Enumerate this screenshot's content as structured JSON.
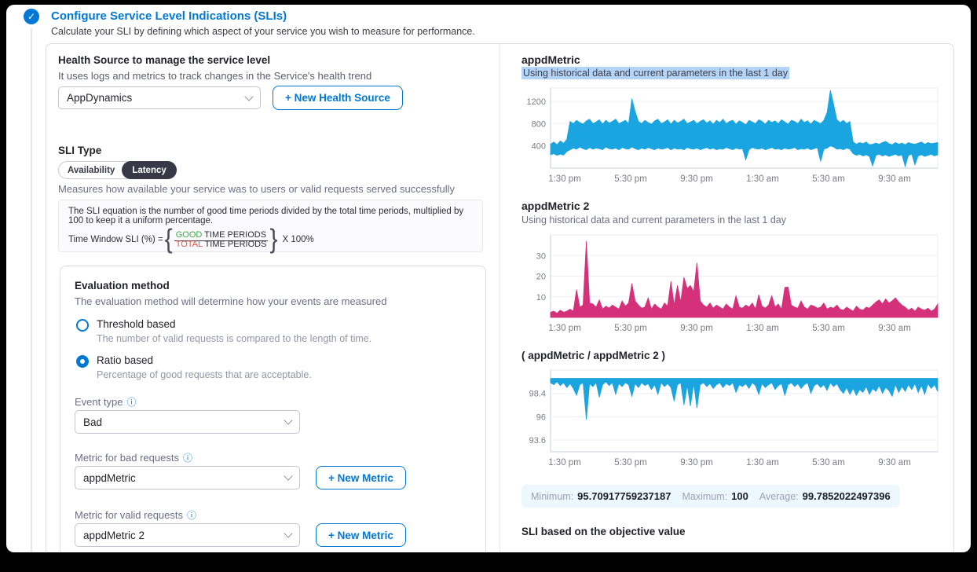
{
  "header": {
    "title": "Configure Service Level Indications (SLIs)",
    "subtitle": "Calculate your SLI by defining which aspect of your service you wish to measure for performance."
  },
  "health_source": {
    "label": "Health Source to manage the service level",
    "help": "It uses logs and metrics to track changes in the Service's health trend",
    "value": "AppDynamics",
    "new_button": "+ New Health Source"
  },
  "sli_type": {
    "label": "SLI Type",
    "options": [
      "Availability",
      "Latency"
    ],
    "selected": "Latency",
    "description": "Measures how available your service was to users or valid requests served successfully"
  },
  "equation": {
    "text": "The SLI equation is the number of good time periods divided by the total time periods, multiplied by 100 to keep it a uniform percentage.",
    "prefix": "Time Window SLI (%) =",
    "numerator_colored": "GOOD",
    "numerator_rest": " TIME PERIODS",
    "denominator_colored": "TOTAL",
    "denominator_rest": " TIME PERIODS",
    "suffix": "X 100%"
  },
  "evaluation": {
    "title": "Evaluation method",
    "subtitle": "The evaluation method will determine how your events are measured",
    "options": [
      {
        "label": "Threshold based",
        "description": "The number of valid requests is compared to the length of time.",
        "selected": false
      },
      {
        "label": "Ratio based",
        "description": "Percentage of good requests that are acceptable.",
        "selected": true
      }
    ]
  },
  "event_type": {
    "label": "Event type",
    "value": "Bad"
  },
  "metric_bad": {
    "label": "Metric for bad requests",
    "value": "appdMetric",
    "new_button": "+ New Metric"
  },
  "metric_valid": {
    "label": "Metric for valid requests",
    "value": "appdMetric 2",
    "new_button": "+ New Metric"
  },
  "stats": {
    "items": [
      {
        "label": "Minimum:",
        "value": "95.70917759237187"
      },
      {
        "label": "Maximum:",
        "value": "100"
      },
      {
        "label": "Average:",
        "value": "99.7852022497396"
      }
    ]
  },
  "footer_heading": "SLI based on the objective value",
  "colors": {
    "accent": "#0278D5",
    "chart_cyan": "#1AA5E0",
    "chart_pink": "#D5307A",
    "selection_highlight": "#B3D4F7",
    "stats_bg": "#EDF7FE",
    "good_green": "#3FA843",
    "total_red": "#E85245",
    "pill_dark": "#383946"
  },
  "chart_data": [
    {
      "type": "band",
      "title": "appdMetric",
      "subtitle": "Using historical data and current parameters in the last 1 day",
      "subtitle_highlighted": true,
      "color": "#1AA5E0",
      "ylim": [
        0,
        1440
      ],
      "yticks": [
        400,
        800,
        1200
      ],
      "xticks": [
        "1:30 pm",
        "5:30 pm",
        "9:30 pm",
        "1:30 am",
        "5:30 am",
        "9:30 am"
      ],
      "band": [
        [
          240,
          430
        ],
        [
          260,
          470
        ],
        [
          230,
          420
        ],
        [
          250,
          490
        ],
        [
          235,
          445
        ],
        [
          300,
          520
        ],
        [
          330,
          840
        ],
        [
          360,
          800
        ],
        [
          340,
          860
        ],
        [
          380,
          820
        ],
        [
          350,
          790
        ],
        [
          330,
          850
        ],
        [
          370,
          880
        ],
        [
          340,
          800
        ],
        [
          360,
          830
        ],
        [
          350,
          870
        ],
        [
          330,
          790
        ],
        [
          380,
          860
        ],
        [
          350,
          810
        ],
        [
          340,
          840
        ],
        [
          360,
          880
        ],
        [
          330,
          800
        ],
        [
          370,
          830
        ],
        [
          350,
          860
        ],
        [
          340,
          800
        ],
        [
          380,
          1250
        ],
        [
          350,
          1020
        ],
        [
          330,
          840
        ],
        [
          360,
          800
        ],
        [
          340,
          860
        ],
        [
          370,
          820
        ],
        [
          350,
          790
        ],
        [
          330,
          850
        ],
        [
          360,
          880
        ],
        [
          340,
          800
        ],
        [
          350,
          830
        ],
        [
          370,
          870
        ],
        [
          330,
          790
        ],
        [
          360,
          860
        ],
        [
          340,
          810
        ],
        [
          350,
          840
        ],
        [
          330,
          880
        ],
        [
          370,
          800
        ],
        [
          350,
          830
        ],
        [
          340,
          860
        ],
        [
          360,
          800
        ],
        [
          330,
          840
        ],
        [
          350,
          870
        ],
        [
          370,
          810
        ],
        [
          340,
          850
        ],
        [
          360,
          790
        ],
        [
          330,
          860
        ],
        [
          350,
          820
        ],
        [
          340,
          880
        ],
        [
          370,
          800
        ],
        [
          350,
          840
        ],
        [
          330,
          860
        ],
        [
          360,
          790
        ],
        [
          340,
          850
        ],
        [
          350,
          820
        ],
        [
          150,
          780
        ],
        [
          330,
          860
        ],
        [
          370,
          830
        ],
        [
          350,
          800
        ],
        [
          340,
          870
        ],
        [
          360,
          840
        ],
        [
          330,
          790
        ],
        [
          350,
          860
        ],
        [
          370,
          820
        ],
        [
          340,
          850
        ],
        [
          350,
          800
        ],
        [
          330,
          870
        ],
        [
          360,
          830
        ],
        [
          340,
          790
        ],
        [
          350,
          860
        ],
        [
          370,
          840
        ],
        [
          330,
          800
        ],
        [
          350,
          880
        ],
        [
          340,
          820
        ],
        [
          360,
          850
        ],
        [
          330,
          790
        ],
        [
          350,
          860
        ],
        [
          370,
          830
        ],
        [
          120,
          800
        ],
        [
          340,
          860
        ],
        [
          360,
          1000
        ],
        [
          400,
          1400
        ],
        [
          380,
          1150
        ],
        [
          340,
          870
        ],
        [
          350,
          820
        ],
        [
          330,
          860
        ],
        [
          360,
          800
        ],
        [
          340,
          840
        ],
        [
          260,
          470
        ],
        [
          230,
          430
        ],
        [
          250,
          460
        ],
        [
          220,
          440
        ],
        [
          240,
          470
        ],
        [
          210,
          420
        ],
        [
          40,
          430
        ],
        [
          230,
          450
        ],
        [
          250,
          430
        ],
        [
          220,
          460
        ],
        [
          240,
          480
        ],
        [
          210,
          440
        ],
        [
          230,
          420
        ],
        [
          250,
          460
        ],
        [
          220,
          430
        ],
        [
          240,
          450
        ],
        [
          30,
          420
        ],
        [
          230,
          460
        ],
        [
          250,
          440
        ],
        [
          60,
          430
        ],
        [
          220,
          450
        ],
        [
          240,
          470
        ],
        [
          210,
          430
        ],
        [
          230,
          460
        ],
        [
          250,
          440
        ],
        [
          220,
          450
        ],
        [
          240,
          460
        ]
      ]
    },
    {
      "type": "area",
      "title": "appdMetric 2",
      "subtitle": "Using historical data and current parameters in the last 1 day",
      "subtitle_highlighted": false,
      "color": "#D5307A",
      "ylim": [
        0,
        40
      ],
      "yticks": [
        10,
        20,
        30
      ],
      "xticks": [
        "1:30 pm",
        "5:30 pm",
        "9:30 pm",
        "1:30 am",
        "5:30 am",
        "9:30 am"
      ],
      "values": [
        2.5,
        3,
        2,
        3.5,
        2.5,
        3,
        4,
        3,
        13.5,
        5,
        6,
        37,
        7,
        6.5,
        5,
        8.5,
        4,
        5.5,
        4.5,
        6,
        5,
        4,
        8,
        5.5,
        7,
        16.5,
        8,
        6,
        4.5,
        5,
        9.5,
        4,
        6.5,
        5,
        4,
        7,
        5.5,
        17.5,
        6,
        15.5,
        7.5,
        19.5,
        14,
        15.5,
        12.5,
        26.5,
        8,
        6,
        5,
        7,
        4.5,
        6,
        5,
        4,
        6.5,
        5,
        4,
        10.5,
        5,
        4.5,
        6,
        5,
        7,
        4,
        11,
        5.5,
        4.5,
        6,
        10.5,
        5,
        6.5,
        4,
        14.5,
        14.8,
        6,
        5,
        4.5,
        8,
        5,
        4,
        6,
        5.5,
        4.5,
        5,
        7,
        4,
        5,
        4.5,
        6,
        4,
        3.5,
        5,
        4,
        3,
        5.5,
        4,
        3.5,
        5,
        4.5,
        6,
        7.5,
        8.5,
        6.5,
        9,
        7,
        8,
        9.5,
        7.5,
        6,
        5,
        3.5,
        4.5,
        3,
        5,
        4,
        3.5,
        4.5,
        3,
        4,
        6.5
      ]
    },
    {
      "type": "topband",
      "title": "( appdMetric / appdMetric 2 )",
      "subtitle": "",
      "subtitle_highlighted": false,
      "color": "#1AA5E0",
      "ylim": [
        92.4,
        100.8
      ],
      "top": 99.95,
      "yticks": [
        93.6,
        96,
        98.4
      ],
      "xticks": [
        "1:30 pm",
        "5:30 pm",
        "9:30 pm",
        "1:30 am",
        "5:30 am",
        "9:30 am"
      ],
      "values": [
        99.5,
        99.3,
        99.6,
        99.2,
        99.5,
        99.0,
        99.4,
        98.9,
        98.2,
        99.3,
        99.5,
        95.7,
        99.4,
        99.1,
        99.5,
        98.0,
        99.3,
        99.6,
        99.2,
        99.5,
        98.3,
        99.4,
        99.1,
        99.5,
        99.3,
        98.1,
        99.4,
        99.0,
        99.5,
        99.2,
        99.4,
        98.8,
        99.3,
        98.3,
        99.5,
        99.1,
        99.4,
        99.0,
        97.6,
        99.3,
        99.5,
        97.2,
        99.2,
        97.1,
        99.4,
        96.9,
        99.3,
        99.5,
        99.1,
        99.4,
        98.9,
        99.3,
        99.5,
        99.0,
        99.4,
        99.2,
        99.5,
        98.5,
        99.3,
        99.1,
        99.4,
        98.9,
        99.5,
        99.2,
        98.3,
        99.4,
        99.0,
        99.3,
        99.5,
        98.8,
        99.2,
        99.4,
        98.2,
        99.3,
        99.5,
        99.1,
        99.4,
        98.9,
        99.3,
        99.5,
        98.4,
        99.2,
        99.4,
        99.0,
        99.3,
        98.7,
        99.5,
        99.1,
        99.4,
        98.8,
        98.4,
        99.0,
        98.3,
        98.9,
        98.2,
        98.8,
        98.5,
        99.1,
        98.3,
        98.9,
        98.6,
        99.2,
        98.4,
        99.0,
        98.7,
        98.1,
        99.3,
        98.5,
        99.1,
        98.6,
        99.3,
        98.8,
        99.4,
        98.5,
        99.2,
        98.3,
        99.4,
        98.9,
        99.3,
        98.6
      ]
    }
  ]
}
